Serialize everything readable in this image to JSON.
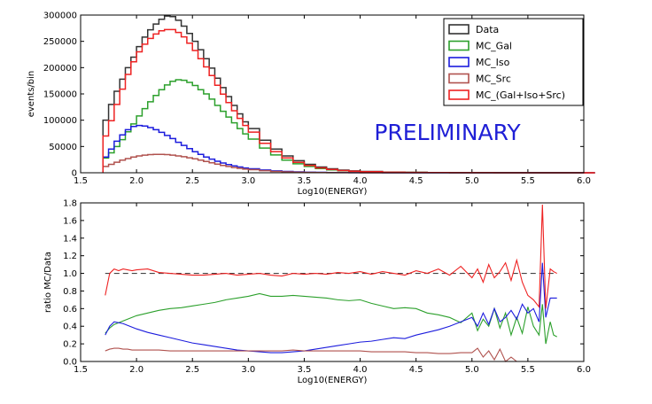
{
  "chart_data": [
    {
      "type": "line",
      "step": true,
      "xlabel": "Log10(ENERGY)",
      "ylabel": "events/bin",
      "xlim": [
        1.5,
        6.0
      ],
      "ylim": [
        0,
        300000
      ],
      "xticks": [
        "1.5",
        "2.0",
        "2.5",
        "3.0",
        "3.5",
        "4.0",
        "4.5",
        "5.0",
        "5.5",
        "6.0"
      ],
      "yticks": [
        "0",
        "50000",
        "100000",
        "150000",
        "200000",
        "250000",
        "300000"
      ],
      "annotation": "PRELIMINARY",
      "annotation_color": "#1f1fd6",
      "legend_position": "top-right",
      "x": [
        1.7,
        1.75,
        1.8,
        1.85,
        1.9,
        1.95,
        2.0,
        2.05,
        2.1,
        2.15,
        2.2,
        2.25,
        2.3,
        2.35,
        2.4,
        2.45,
        2.5,
        2.55,
        2.6,
        2.65,
        2.7,
        2.75,
        2.8,
        2.85,
        2.9,
        2.95,
        3.0,
        3.1,
        3.2,
        3.3,
        3.4,
        3.5,
        3.6,
        3.7,
        3.8,
        3.9,
        4.0,
        4.2,
        4.4,
        4.6,
        4.8,
        5.0,
        5.2,
        5.5,
        5.8
      ],
      "series": [
        {
          "name": "Data",
          "color": "#333333",
          "values": [
            100000,
            130000,
            155000,
            178000,
            200000,
            220000,
            240000,
            258000,
            272000,
            283000,
            292000,
            298000,
            297000,
            290000,
            279000,
            265000,
            250000,
            234000,
            217000,
            199000,
            180000,
            162000,
            145000,
            128000,
            112000,
            97000,
            84000,
            62000,
            45000,
            32000,
            23000,
            16000,
            11000,
            7500,
            5000,
            3500,
            2500,
            1300,
            800,
            500,
            300,
            200,
            120,
            60,
            30
          ]
        },
        {
          "name": "MC_Gal",
          "color": "#2ca02c",
          "values": [
            28000,
            38000,
            50000,
            63000,
            78000,
            93000,
            108000,
            122000,
            135000,
            147000,
            158000,
            167000,
            174000,
            177000,
            176000,
            172000,
            166000,
            158000,
            150000,
            140000,
            128000,
            117000,
            106000,
            95000,
            84000,
            74000,
            64000,
            47000,
            34000,
            24000,
            17000,
            12000,
            8000,
            5500,
            3700,
            2600,
            1800,
            900,
            550,
            340,
            200,
            140,
            80,
            40,
            20
          ]
        },
        {
          "name": "MC_Iso",
          "color": "#1c1cdd",
          "values": [
            30000,
            45000,
            60000,
            72000,
            82000,
            88000,
            90000,
            89000,
            86000,
            82000,
            77000,
            71000,
            65000,
            58000,
            52000,
            46000,
            40000,
            35000,
            30000,
            26000,
            22000,
            18500,
            15500,
            13000,
            11000,
            9000,
            7500,
            5200,
            3600,
            2500,
            1700,
            1150,
            780,
            520,
            350,
            240,
            160,
            80,
            45,
            25,
            15,
            10,
            5,
            3,
            2
          ]
        },
        {
          "name": "MC_Src",
          "color": "#b0524e",
          "values": [
            12000,
            16000,
            20000,
            24000,
            27000,
            30000,
            32000,
            33500,
            34500,
            35000,
            35000,
            34500,
            33500,
            32000,
            30500,
            28500,
            26500,
            24000,
            21500,
            19000,
            16500,
            14000,
            12000,
            10000,
            8500,
            7000,
            5800,
            3900,
            2600,
            1700,
            1100,
            700,
            450,
            290,
            190,
            120,
            80,
            35,
            15,
            8,
            4,
            2,
            1,
            0,
            0
          ]
        },
        {
          "name": "MC_(Gal+Iso+Src)",
          "color": "#ee2222",
          "values": [
            70000,
            99000,
            130000,
            159000,
            187000,
            211000,
            230000,
            244500,
            255500,
            264000,
            270000,
            272500,
            272500,
            267000,
            258500,
            246500,
            232500,
            217000,
            201500,
            185000,
            166500,
            149500,
            133500,
            118000,
            103500,
            90000,
            77300,
            56100,
            40200,
            28200,
            19800,
            13850,
            9230,
            6310,
            4240,
            2960,
            2040,
            1015,
            610,
            373,
            219,
            152,
            86,
            43,
            22
          ]
        }
      ]
    },
    {
      "type": "line",
      "xlabel": "Log10(ENERGY)",
      "ylabel": "ratio MC/Data",
      "xlim": [
        1.5,
        6.0
      ],
      "ylim": [
        0.0,
        1.8
      ],
      "xticks": [
        "1.5",
        "2.0",
        "2.5",
        "3.0",
        "3.5",
        "4.0",
        "4.5",
        "5.0",
        "5.5",
        "6.0"
      ],
      "yticks": [
        "0.0",
        "0.2",
        "0.4",
        "0.6",
        "0.8",
        "1.0",
        "1.2",
        "1.4",
        "1.6",
        "1.8"
      ],
      "reference_line": 1.0,
      "reference_color": "#444444",
      "x": [
        1.72,
        1.76,
        1.8,
        1.84,
        1.88,
        1.92,
        1.96,
        2.0,
        2.1,
        2.2,
        2.3,
        2.4,
        2.5,
        2.6,
        2.7,
        2.8,
        2.9,
        3.0,
        3.1,
        3.2,
        3.3,
        3.4,
        3.5,
        3.6,
        3.7,
        3.8,
        3.9,
        4.0,
        4.1,
        4.2,
        4.3,
        4.4,
        4.5,
        4.6,
        4.7,
        4.8,
        4.9,
        5.0,
        5.05,
        5.1,
        5.15,
        5.2,
        5.25,
        5.3,
        5.35,
        5.4,
        5.45,
        5.5,
        5.55,
        5.6,
        5.63,
        5.66,
        5.7,
        5.73,
        5.76
      ],
      "series": [
        {
          "name": "MC_Gal",
          "color": "#2ca02c",
          "values": [
            0.32,
            0.38,
            0.42,
            0.44,
            0.46,
            0.48,
            0.5,
            0.52,
            0.55,
            0.58,
            0.6,
            0.61,
            0.63,
            0.65,
            0.67,
            0.7,
            0.72,
            0.74,
            0.77,
            0.74,
            0.74,
            0.75,
            0.74,
            0.73,
            0.72,
            0.7,
            0.69,
            0.7,
            0.66,
            0.63,
            0.6,
            0.61,
            0.6,
            0.55,
            0.53,
            0.5,
            0.44,
            0.55,
            0.35,
            0.48,
            0.4,
            0.6,
            0.38,
            0.55,
            0.3,
            0.5,
            0.32,
            0.62,
            0.4,
            0.3,
            0.65,
            0.2,
            0.45,
            0.3,
            0.28
          ]
        },
        {
          "name": "MC_Iso",
          "color": "#1c1cdd",
          "values": [
            0.3,
            0.4,
            0.45,
            0.44,
            0.43,
            0.41,
            0.39,
            0.37,
            0.33,
            0.3,
            0.27,
            0.24,
            0.21,
            0.19,
            0.17,
            0.15,
            0.13,
            0.12,
            0.11,
            0.1,
            0.1,
            0.11,
            0.12,
            0.14,
            0.16,
            0.18,
            0.2,
            0.22,
            0.23,
            0.25,
            0.27,
            0.26,
            0.3,
            0.33,
            0.36,
            0.4,
            0.45,
            0.5,
            0.4,
            0.55,
            0.42,
            0.6,
            0.45,
            0.5,
            0.58,
            0.48,
            0.65,
            0.55,
            0.6,
            0.45,
            1.12,
            0.5,
            0.72,
            0.72,
            0.72
          ]
        },
        {
          "name": "MC_Src",
          "color": "#b0524e",
          "values": [
            0.12,
            0.14,
            0.15,
            0.15,
            0.14,
            0.14,
            0.13,
            0.13,
            0.13,
            0.13,
            0.12,
            0.12,
            0.12,
            0.12,
            0.12,
            0.12,
            0.12,
            0.12,
            0.12,
            0.12,
            0.12,
            0.13,
            0.12,
            0.12,
            0.12,
            0.12,
            0.12,
            0.12,
            0.11,
            0.11,
            0.11,
            0.11,
            0.1,
            0.1,
            0.09,
            0.09,
            0.1,
            0.1,
            0.15,
            0.05,
            0.12,
            0.02,
            0.14,
            0.0,
            0.05,
            0.0,
            0.0,
            0.0,
            0.0,
            0.0,
            0.0,
            0.0,
            0.0,
            0.0,
            0.0
          ]
        },
        {
          "name": "MC_(Gal+Iso+Src)",
          "color": "#ee2222",
          "values": [
            0.75,
            1.0,
            1.05,
            1.03,
            1.05,
            1.04,
            1.03,
            1.04,
            1.05,
            1.01,
            1.0,
            0.99,
            0.98,
            0.98,
            0.99,
            1.0,
            0.98,
            0.99,
            1.0,
            0.98,
            0.97,
            1.0,
            0.99,
            1.0,
            0.99,
            1.01,
            1.0,
            1.02,
            0.99,
            1.02,
            1.0,
            0.98,
            1.03,
            1.0,
            1.05,
            0.98,
            1.08,
            0.95,
            1.05,
            0.9,
            1.1,
            0.95,
            1.02,
            1.12,
            0.92,
            1.15,
            0.9,
            0.75,
            0.7,
            0.62,
            1.78,
            0.6,
            1.05,
            1.02,
            1.0
          ]
        }
      ]
    }
  ]
}
